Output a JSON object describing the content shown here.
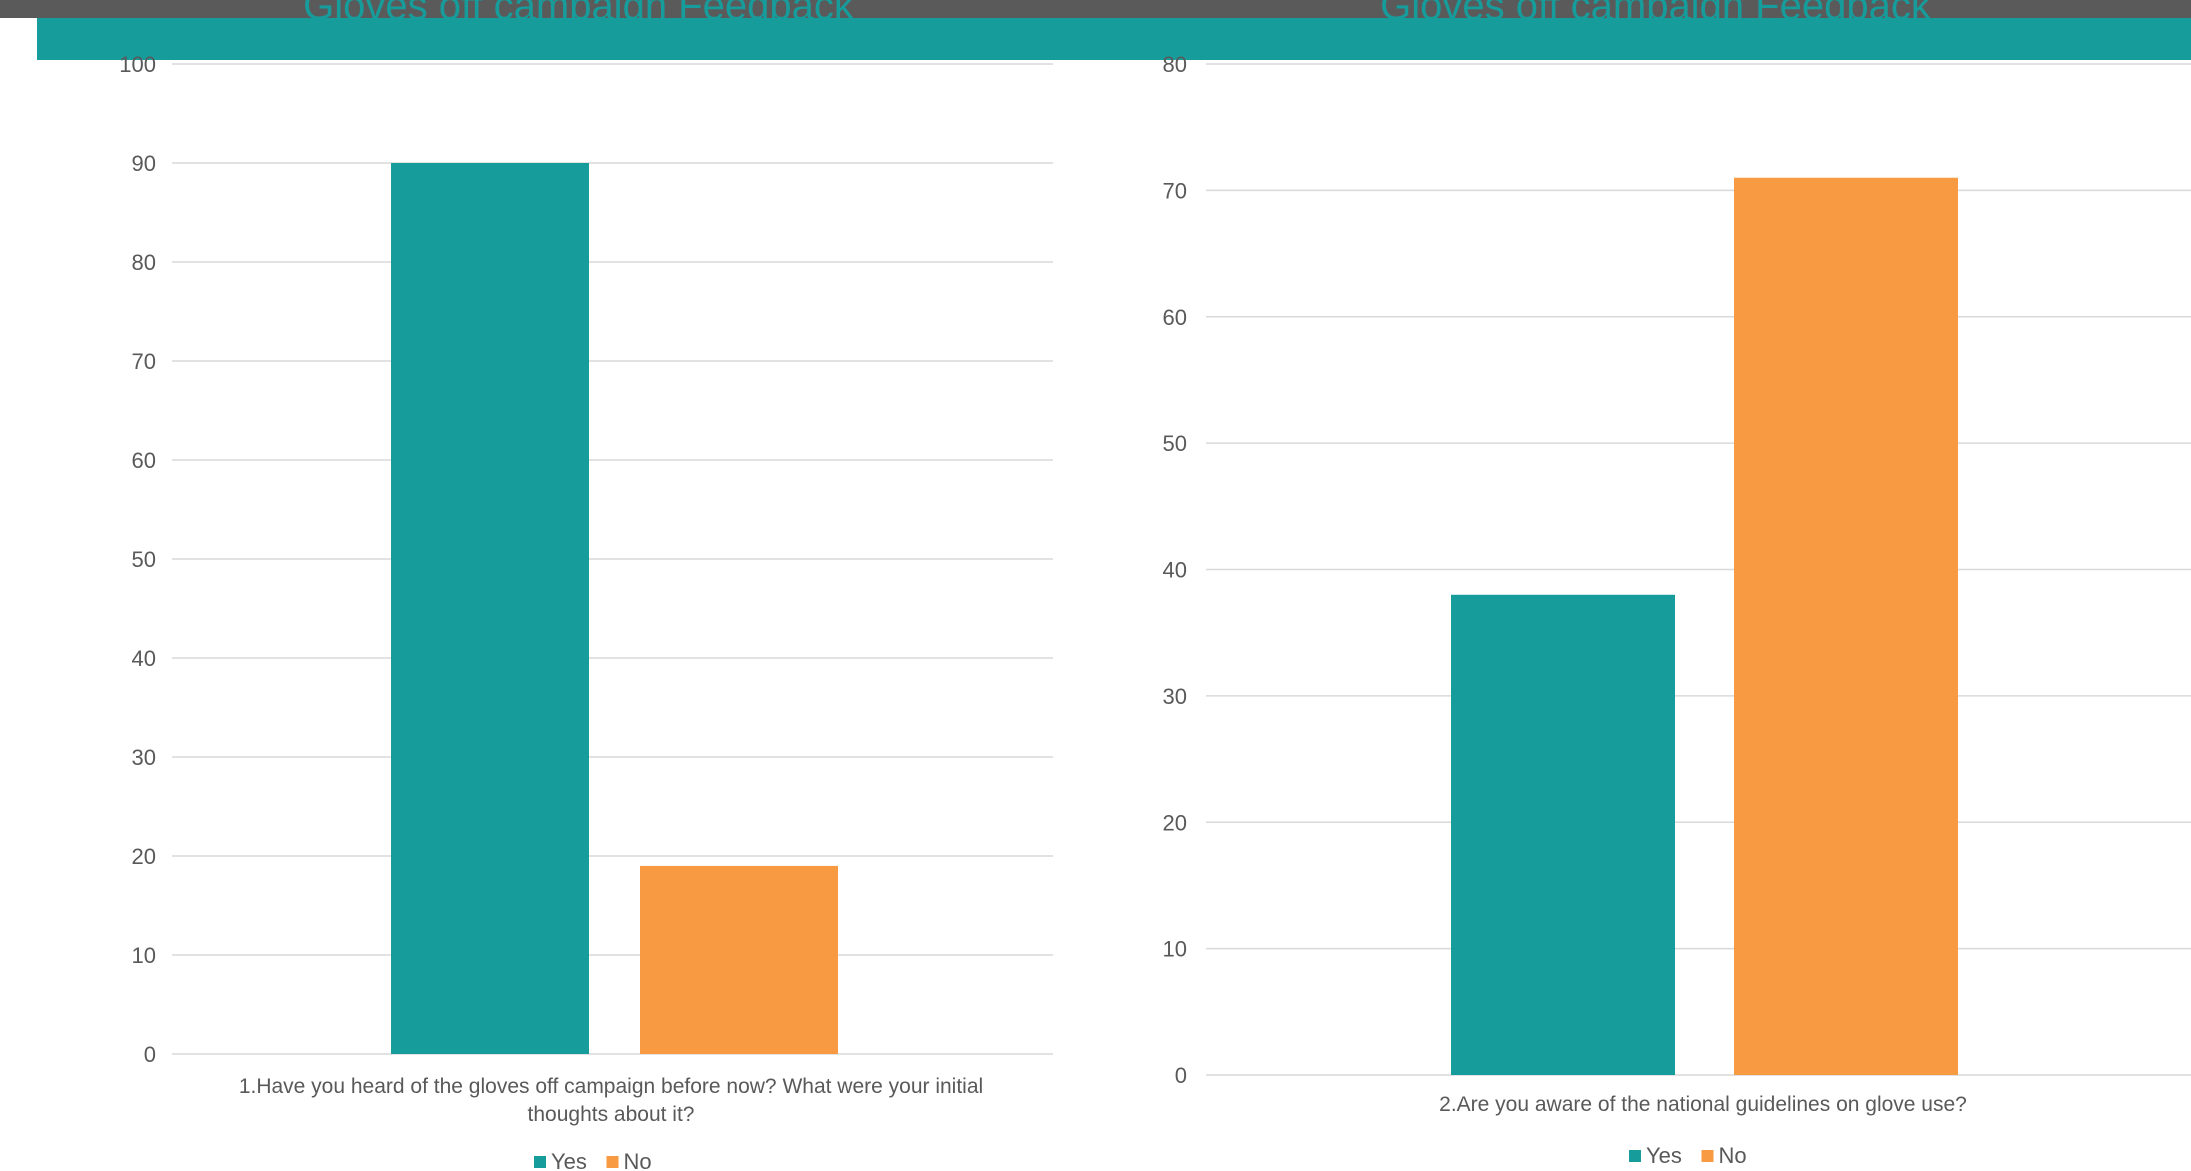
{
  "header": {
    "left_title": "Gloves off campaign Feedback",
    "right_title": "Gloves off campaign Feedback"
  },
  "colors": {
    "teal": "#179c9c",
    "orange": "#f79a41",
    "grid": "#d9d9d9",
    "text": "#595959"
  },
  "chart_data": [
    {
      "type": "bar",
      "title": "",
      "categories": [
        "1.Have you heard of the gloves off campaign before now? What were your initial thoughts about it?"
      ],
      "category_lines": [
        "1.Have you heard of the gloves off campaign before now? What were your initial",
        "thoughts about it?"
      ],
      "series": [
        {
          "name": "Yes",
          "values": [
            90
          ]
        },
        {
          "name": "No",
          "values": [
            19
          ]
        }
      ],
      "ylim": [
        0,
        100
      ],
      "yticks": [
        "0",
        "10",
        "20",
        "30",
        "40",
        "50",
        "60",
        "70",
        "80",
        "90",
        "100"
      ],
      "grid": true,
      "legend": "bottom"
    },
    {
      "type": "bar",
      "title": "",
      "categories": [
        "2.Are you aware of the national guidelines on glove use?"
      ],
      "category_lines": [
        "2.Are you aware of the national guidelines on glove use?"
      ],
      "series": [
        {
          "name": "Yes",
          "values": [
            38
          ]
        },
        {
          "name": "No",
          "values": [
            71
          ]
        }
      ],
      "ylim": [
        0,
        80
      ],
      "yticks": [
        "0",
        "10",
        "20",
        "30",
        "40",
        "50",
        "60",
        "70",
        "80"
      ],
      "grid": true,
      "legend": "bottom"
    }
  ]
}
